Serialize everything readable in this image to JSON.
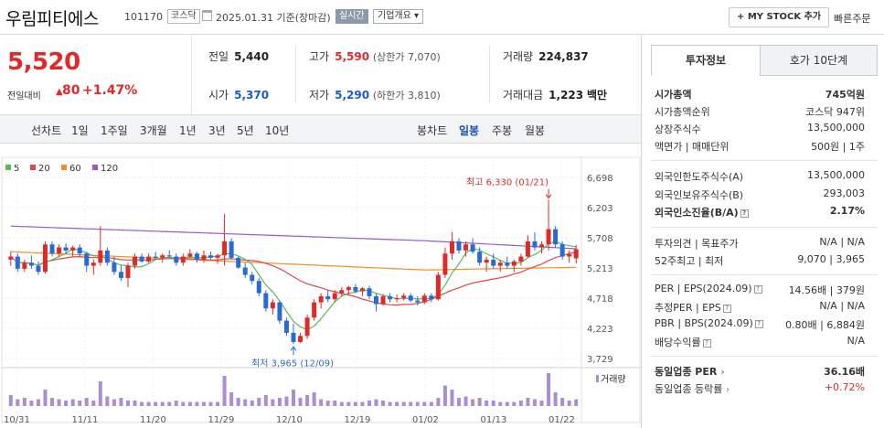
{
  "header": {
    "title": "우림피티에스",
    "code": "101170",
    "market": "코스닥",
    "date": "2025.01.31",
    "basis": "기준(장마감)",
    "realtime_label": "실시간",
    "overview_label": "기업개요 ▾",
    "mystock_label": "+ MY STOCK 추가",
    "quick_order_label": "빠른주문"
  },
  "price": {
    "current": "5,520",
    "change_label": "전일대비",
    "change_arrow": "▲",
    "change_value": "80",
    "change_pct": "+1.47%"
  },
  "summary": {
    "prev_close_label": "전일",
    "prev_close": "5,440",
    "high_label": "고가",
    "high": "5,590",
    "upper_limit": "(상한가 7,070)",
    "volume_label": "거래량",
    "volume": "224,837",
    "open_label": "시가",
    "open": "5,370",
    "low_label": "저가",
    "low": "5,290",
    "lower_limit": "(하한가 3,810)",
    "amount_label": "거래대금",
    "amount": "1,223",
    "amount_unit": "백만"
  },
  "period_tabs": {
    "line_chart": "선차트",
    "d1": "1일",
    "w1": "1주일",
    "m3": "3개월",
    "y1": "1년",
    "y3": "3년",
    "y5": "5년",
    "y10": "10년",
    "candle_chart": "봉차트",
    "daily": "일봉",
    "weekly": "주봉",
    "monthly": "월봉"
  },
  "chart_data": {
    "type": "candlestick",
    "legend": [
      {
        "name": "5",
        "color": "#5cb85c"
      },
      {
        "name": "20",
        "color": "#e04848"
      },
      {
        "name": "60",
        "color": "#f0902a"
      },
      {
        "name": "120",
        "color": "#9b59c8"
      }
    ],
    "y_ticks": [
      "6,698",
      "6,203",
      "5,708",
      "5,213",
      "4,718",
      "4,223",
      "3,729"
    ],
    "ylim": [
      3729,
      6698
    ],
    "x_ticks": [
      "10/31",
      "11/11",
      "11/20",
      "11/29",
      "12/10",
      "12/19",
      "01/02",
      "01/13",
      "01/22"
    ],
    "high_annotation": "최고 6,330 (01/21)",
    "low_annotation": "최저 3,965 (12/09)",
    "volume_label": "거래량",
    "candles": [
      [
        5350,
        5480,
        5250,
        5400
      ],
      [
        5400,
        5450,
        5150,
        5200
      ],
      [
        5200,
        5350,
        5150,
        5300
      ],
      [
        5300,
        5420,
        5200,
        5250
      ],
      [
        5250,
        5320,
        5100,
        5150
      ],
      [
        5150,
        5650,
        5120,
        5600
      ],
      [
        5600,
        5650,
        5400,
        5450
      ],
      [
        5450,
        5600,
        5400,
        5550
      ],
      [
        5550,
        5620,
        5450,
        5500
      ],
      [
        5500,
        5580,
        5400,
        5550
      ],
      [
        5550,
        5600,
        5400,
        5450
      ],
      [
        5450,
        5480,
        5150,
        5250
      ],
      [
        5250,
        5350,
        5100,
        5300
      ],
      [
        5300,
        5900,
        5250,
        5500
      ],
      [
        5500,
        5550,
        5250,
        5300
      ],
      [
        5300,
        5400,
        5100,
        5150
      ],
      [
        5150,
        5250,
        5000,
        5050
      ],
      [
        5050,
        5300,
        4900,
        5250
      ],
      [
        5250,
        5450,
        5200,
        5400
      ],
      [
        5400,
        5450,
        5300,
        5320
      ],
      [
        5320,
        5450,
        5300,
        5400
      ],
      [
        5400,
        5480,
        5350,
        5380
      ],
      [
        5380,
        5450,
        5300,
        5420
      ],
      [
        5420,
        5500,
        5380,
        5400
      ],
      [
        5400,
        5450,
        5250,
        5300
      ],
      [
        5300,
        5450,
        5250,
        5400
      ],
      [
        5400,
        5520,
        5380,
        5450
      ],
      [
        5450,
        5480,
        5300,
        5350
      ],
      [
        5350,
        5500,
        5300,
        5420
      ],
      [
        5420,
        5480,
        5350,
        5380
      ],
      [
        5380,
        5450,
        5280,
        5420
      ],
      [
        5420,
        6100,
        5250,
        5650
      ],
      [
        5650,
        5700,
        5350,
        5380
      ],
      [
        5380,
        5400,
        5200,
        5220
      ],
      [
        5220,
        5300,
        5050,
        5100
      ],
      [
        5100,
        5150,
        4950,
        5000
      ],
      [
        5000,
        5050,
        4750,
        4800
      ],
      [
        4800,
        4850,
        4500,
        4550
      ],
      [
        4550,
        4700,
        4450,
        4650
      ],
      [
        4650,
        4680,
        4300,
        4350
      ],
      [
        4350,
        4400,
        4100,
        4150
      ],
      [
        4150,
        4300,
        3965,
        4000
      ],
      [
        4000,
        4150,
        3980,
        4100
      ],
      [
        4100,
        4450,
        4050,
        4400
      ],
      [
        4400,
        4700,
        4350,
        4650
      ],
      [
        4650,
        4800,
        4550,
        4750
      ],
      [
        4750,
        4850,
        4650,
        4700
      ],
      [
        4700,
        4850,
        4650,
        4800
      ],
      [
        4800,
        4900,
        4750,
        4850
      ],
      [
        4850,
        4920,
        4780,
        4900
      ],
      [
        4900,
        4950,
        4800,
        4830
      ],
      [
        4830,
        4900,
        4750,
        4880
      ],
      [
        4880,
        4920,
        4700,
        4750
      ],
      [
        4750,
        4800,
        4500,
        4620
      ],
      [
        4620,
        4780,
        4600,
        4750
      ],
      [
        4750,
        4800,
        4650,
        4700
      ],
      [
        4700,
        4780,
        4650,
        4720
      ],
      [
        4720,
        4800,
        4680,
        4760
      ],
      [
        4760,
        4800,
        4650,
        4680
      ],
      [
        4680,
        4750,
        4600,
        4650
      ],
      [
        4650,
        4800,
        4620,
        4760
      ],
      [
        4760,
        4800,
        4650,
        4700
      ],
      [
        4700,
        5150,
        4680,
        5100
      ],
      [
        5100,
        5550,
        5050,
        5450
      ],
      [
        5450,
        5800,
        5350,
        5650
      ],
      [
        5650,
        5700,
        5450,
        5500
      ],
      [
        5500,
        5650,
        5400,
        5600
      ],
      [
        5600,
        5700,
        5450,
        5480
      ],
      [
        5480,
        5550,
        5250,
        5300
      ],
      [
        5300,
        5400,
        5150,
        5350
      ],
      [
        5350,
        5450,
        5200,
        5250
      ],
      [
        5250,
        5350,
        5150,
        5300
      ],
      [
        5300,
        5400,
        5200,
        5250
      ],
      [
        5250,
        5350,
        5150,
        5320
      ],
      [
        5320,
        5450,
        5250,
        5400
      ],
      [
        5400,
        5750,
        5380,
        5650
      ],
      [
        5650,
        5800,
        5500,
        5550
      ],
      [
        5550,
        5650,
        5450,
        5600
      ],
      [
        5600,
        6330,
        5500,
        5850
      ],
      [
        5850,
        5900,
        5550,
        5600
      ],
      [
        5600,
        5650,
        5350,
        5400
      ],
      [
        5400,
        5500,
        5300,
        5440
      ],
      [
        5370,
        5590,
        5290,
        5520
      ]
    ],
    "volumes": [
      8,
      5,
      6,
      4,
      5,
      12,
      6,
      5,
      4,
      5,
      4,
      6,
      4,
      18,
      7,
      5,
      6,
      4,
      4,
      3,
      3,
      3,
      3,
      3,
      4,
      3,
      3,
      3,
      3,
      3,
      3,
      22,
      10,
      6,
      5,
      4,
      6,
      8,
      5,
      6,
      7,
      12,
      6,
      8,
      10,
      5,
      4,
      4,
      3,
      3,
      3,
      3,
      4,
      5,
      4,
      3,
      3,
      3,
      3,
      3,
      3,
      3,
      6,
      15,
      12,
      6,
      7,
      5,
      6,
      4,
      4,
      3,
      3,
      3,
      4,
      6,
      5,
      4,
      24,
      10,
      6,
      4,
      5
    ]
  },
  "right_panel": {
    "tab_invest": "투자정보",
    "tab_hoga": "호가 10단계",
    "rows": {
      "market_cap_label": "시가총액",
      "market_cap": "745억원",
      "rank_label": "시가총액순위",
      "rank": "코스닥 947위",
      "shares_label": "상장주식수",
      "shares": "13,500,000",
      "par_label": "액면가 | 매매단위",
      "par": "500원 | 1주",
      "foreign_limit_label": "외국인한도주식수(A)",
      "foreign_limit": "13,500,000",
      "foreign_hold_label": "외국인보유주식수(B)",
      "foreign_hold": "293,003",
      "foreign_ratio_label": "외국인소진율(B/A)",
      "foreign_ratio": "2.17%",
      "opinion_label": "투자의견 | 목표주가",
      "opinion": "N/A | N/A",
      "w52_label": "52주최고 | 최저",
      "w52": "9,070 | 3,965",
      "per_label": "PER | EPS(2024.09)",
      "per": "14.56배 | 379원",
      "est_per_label": "추정PER | EPS",
      "est_per": "N/A | N/A",
      "pbr_label": "PBR | BPS(2024.09)",
      "pbr": "0.80배 | 6,884원",
      "dividend_label": "배당수익률",
      "dividend": "N/A",
      "sector_per_label": "동일업종 PER",
      "sector_per": "36.16배",
      "sector_rate_label": "동일업종 등락률",
      "sector_rate": "+0.72%"
    }
  }
}
